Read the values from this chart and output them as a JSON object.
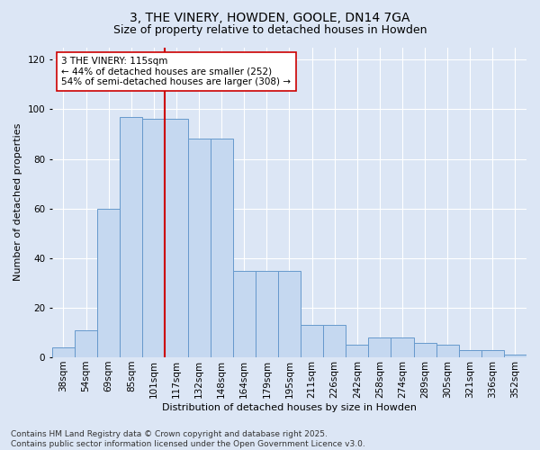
{
  "title": "3, THE VINERY, HOWDEN, GOOLE, DN14 7GA",
  "subtitle": "Size of property relative to detached houses in Howden",
  "xlabel": "Distribution of detached houses by size in Howden",
  "ylabel": "Number of detached properties",
  "categories": [
    "38sqm",
    "54sqm",
    "69sqm",
    "85sqm",
    "101sqm",
    "117sqm",
    "132sqm",
    "148sqm",
    "164sqm",
    "179sqm",
    "195sqm",
    "211sqm",
    "226sqm",
    "242sqm",
    "258sqm",
    "274sqm",
    "289sqm",
    "305sqm",
    "321sqm",
    "336sqm",
    "352sqm"
  ],
  "values": [
    4,
    11,
    60,
    97,
    96,
    96,
    88,
    88,
    35,
    35,
    35,
    13,
    13,
    5,
    8,
    8,
    6,
    5,
    3,
    3,
    1
  ],
  "bar_color": "#c5d8f0",
  "bar_edge_color": "#6699cc",
  "vline_index": 5,
  "vline_color": "#cc0000",
  "annotation_text": "3 THE VINERY: 115sqm\n← 44% of detached houses are smaller (252)\n54% of semi-detached houses are larger (308) →",
  "annotation_box_color": "#ffffff",
  "annotation_box_edge": "#cc0000",
  "ylim": [
    0,
    125
  ],
  "yticks": [
    0,
    20,
    40,
    60,
    80,
    100,
    120
  ],
  "background_color": "#dce6f5",
  "plot_background": "#dce6f5",
  "footer": "Contains HM Land Registry data © Crown copyright and database right 2025.\nContains public sector information licensed under the Open Government Licence v3.0.",
  "title_fontsize": 10,
  "subtitle_fontsize": 9,
  "axis_label_fontsize": 8,
  "tick_fontsize": 7.5,
  "annotation_fontsize": 7.5,
  "footer_fontsize": 6.5
}
